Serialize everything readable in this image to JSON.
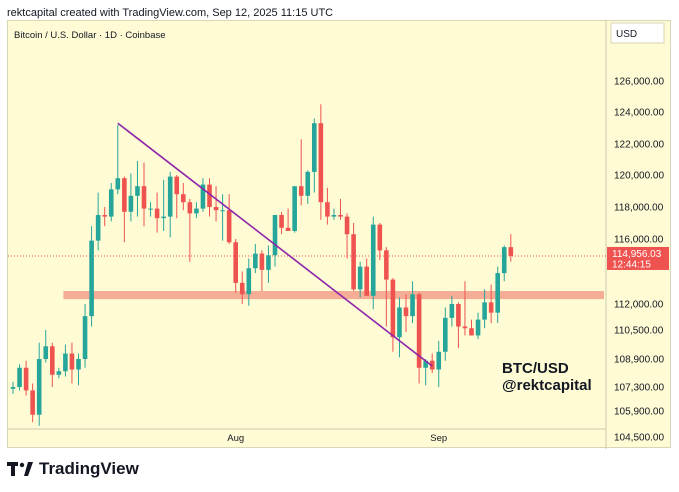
{
  "header": "rektcapital created with TradingView.com, Sep 12, 2025 11:15 UTC",
  "brand": "TradingView",
  "colors": {
    "background": "#fffbd5",
    "up": "#26a69a",
    "down": "#ef5350",
    "support_zone": "#f4a48f",
    "trendline": "#8e24aa"
  },
  "chart_data": {
    "type": "candlestick",
    "title": "Bitcoin / U.S. Dollar · 1D · Coinbase",
    "currency": "USD",
    "y_ticks": [
      "126,000.00",
      "124,000.00",
      "122,000.00",
      "120,000.00",
      "118,000.00",
      "116,000.00",
      "112,000.00",
      "110,500.00",
      "108,900.00",
      "107,300.00",
      "105,900.00",
      "104,500.00"
    ],
    "x_labels": [
      "Aug",
      "Sep"
    ],
    "last_price": {
      "value": "114,956.03",
      "countdown": "12:44:15"
    },
    "annotation": [
      "BTC/USD",
      "@rektcapital"
    ],
    "support_zone": [
      112300,
      112800
    ],
    "trendline": [
      {
        "date": "Jul 14",
        "price": 123300
      },
      {
        "date": "Aug 31",
        "price": 108500
      }
    ],
    "candles": [
      {
        "date": "Jun 28",
        "o": 107200,
        "h": 107600,
        "l": 106900,
        "c": 107300
      },
      {
        "date": "Jun 29",
        "o": 107300,
        "h": 108600,
        "l": 107100,
        "c": 108400
      },
      {
        "date": "Jun 30",
        "o": 108400,
        "h": 108800,
        "l": 106800,
        "c": 107100
      },
      {
        "date": "Jul 1",
        "o": 107100,
        "h": 107500,
        "l": 105300,
        "c": 105700
      },
      {
        "date": "Jul 2",
        "o": 105700,
        "h": 109800,
        "l": 105100,
        "c": 108900
      },
      {
        "date": "Jul 3",
        "o": 108900,
        "h": 110500,
        "l": 108700,
        "c": 109600
      },
      {
        "date": "Jul 4",
        "o": 109600,
        "h": 109800,
        "l": 107300,
        "c": 108000
      },
      {
        "date": "Jul 5",
        "o": 108000,
        "h": 108400,
        "l": 107800,
        "c": 108200
      },
      {
        "date": "Jul 6",
        "o": 108200,
        "h": 109700,
        "l": 107900,
        "c": 109200
      },
      {
        "date": "Jul 7",
        "o": 109200,
        "h": 109800,
        "l": 107500,
        "c": 108300
      },
      {
        "date": "Jul 8",
        "o": 108300,
        "h": 109200,
        "l": 107400,
        "c": 108900
      },
      {
        "date": "Jul 9",
        "o": 108900,
        "h": 112000,
        "l": 108400,
        "c": 111300
      },
      {
        "date": "Jul 10",
        "o": 111300,
        "h": 116800,
        "l": 110700,
        "c": 115900
      },
      {
        "date": "Jul 11",
        "o": 115900,
        "h": 118900,
        "l": 115300,
        "c": 117500
      },
      {
        "date": "Jul 12",
        "o": 117500,
        "h": 118000,
        "l": 116800,
        "c": 117400
      },
      {
        "date": "Jul 13",
        "o": 117400,
        "h": 119500,
        "l": 117100,
        "c": 119100
      },
      {
        "date": "Jul 14",
        "o": 119100,
        "h": 123200,
        "l": 118800,
        "c": 119800
      },
      {
        "date": "Jul 15",
        "o": 119800,
        "h": 119900,
        "l": 115800,
        "c": 117700
      },
      {
        "date": "Jul 16",
        "o": 117700,
        "h": 120100,
        "l": 117100,
        "c": 118700
      },
      {
        "date": "Jul 17",
        "o": 118700,
        "h": 120900,
        "l": 117400,
        "c": 119300
      },
      {
        "date": "Jul 18",
        "o": 119300,
        "h": 120800,
        "l": 116800,
        "c": 117900
      },
      {
        "date": "Jul 19",
        "o": 117900,
        "h": 118300,
        "l": 117400,
        "c": 117900
      },
      {
        "date": "Jul 20",
        "o": 117900,
        "h": 118900,
        "l": 116400,
        "c": 117300
      },
      {
        "date": "Jul 21",
        "o": 117300,
        "h": 119700,
        "l": 116500,
        "c": 117400
      },
      {
        "date": "Jul 22",
        "o": 117400,
        "h": 120200,
        "l": 116100,
        "c": 119900
      },
      {
        "date": "Jul 23",
        "o": 119900,
        "h": 120000,
        "l": 117300,
        "c": 118800
      },
      {
        "date": "Jul 24",
        "o": 118800,
        "h": 119500,
        "l": 117800,
        "c": 118300
      },
      {
        "date": "Jul 25",
        "o": 118300,
        "h": 118500,
        "l": 114600,
        "c": 117600
      },
      {
        "date": "Jul 26",
        "o": 117600,
        "h": 118300,
        "l": 117300,
        "c": 117900
      },
      {
        "date": "Jul 27",
        "o": 117900,
        "h": 119800,
        "l": 117700,
        "c": 119400
      },
      {
        "date": "Jul 28",
        "o": 119400,
        "h": 119800,
        "l": 117400,
        "c": 118000
      },
      {
        "date": "Jul 29",
        "o": 118000,
        "h": 119300,
        "l": 117100,
        "c": 117800
      },
      {
        "date": "Jul 30",
        "o": 117800,
        "h": 118800,
        "l": 115900,
        "c": 117800
      },
      {
        "date": "Jul 31",
        "o": 117800,
        "h": 118800,
        "l": 115700,
        "c": 115800
      },
      {
        "date": "Aug 1",
        "o": 115800,
        "h": 116000,
        "l": 112700,
        "c": 113300
      },
      {
        "date": "Aug 2",
        "o": 113300,
        "h": 114000,
        "l": 112000,
        "c": 112600
      },
      {
        "date": "Aug 3",
        "o": 112600,
        "h": 114800,
        "l": 111900,
        "c": 114200
      },
      {
        "date": "Aug 4",
        "o": 114200,
        "h": 115700,
        "l": 113900,
        "c": 115100
      },
      {
        "date": "Aug 5",
        "o": 115100,
        "h": 115300,
        "l": 112800,
        "c": 114100
      },
      {
        "date": "Aug 6",
        "o": 114100,
        "h": 115600,
        "l": 113300,
        "c": 115000
      },
      {
        "date": "Aug 7",
        "o": 115000,
        "h": 117500,
        "l": 114300,
        "c": 117500
      },
      {
        "date": "Aug 8",
        "o": 117500,
        "h": 117700,
        "l": 116300,
        "c": 116700
      },
      {
        "date": "Aug 9",
        "o": 116700,
        "h": 117900,
        "l": 116500,
        "c": 116500
      },
      {
        "date": "Aug 10",
        "o": 116500,
        "h": 119300,
        "l": 116400,
        "c": 119300
      },
      {
        "date": "Aug 11",
        "o": 119300,
        "h": 122300,
        "l": 118100,
        "c": 118700
      },
      {
        "date": "Aug 12",
        "o": 118700,
        "h": 120300,
        "l": 118200,
        "c": 120200
      },
      {
        "date": "Aug 13",
        "o": 120200,
        "h": 123600,
        "l": 118900,
        "c": 123300
      },
      {
        "date": "Aug 14",
        "o": 123300,
        "h": 124500,
        "l": 117200,
        "c": 118300
      },
      {
        "date": "Aug 15",
        "o": 118300,
        "h": 119200,
        "l": 116900,
        "c": 117400
      },
      {
        "date": "Aug 16",
        "o": 117400,
        "h": 117900,
        "l": 117200,
        "c": 117500
      },
      {
        "date": "Aug 17",
        "o": 117500,
        "h": 118500,
        "l": 117200,
        "c": 117400
      },
      {
        "date": "Aug 18",
        "o": 117400,
        "h": 117600,
        "l": 114800,
        "c": 116300
      },
      {
        "date": "Aug 19",
        "o": 116300,
        "h": 117000,
        "l": 112800,
        "c": 112900
      },
      {
        "date": "Aug 20",
        "o": 112900,
        "h": 114600,
        "l": 112400,
        "c": 114300
      },
      {
        "date": "Aug 21",
        "o": 114300,
        "h": 114800,
        "l": 112600,
        "c": 112500
      },
      {
        "date": "Aug 22",
        "o": 112500,
        "h": 117400,
        "l": 111700,
        "c": 116900
      },
      {
        "date": "Aug 23",
        "o": 116900,
        "h": 117000,
        "l": 114700,
        "c": 115300
      },
      {
        "date": "Aug 24",
        "o": 115300,
        "h": 115500,
        "l": 110700,
        "c": 113500
      },
      {
        "date": "Aug 25",
        "o": 113500,
        "h": 113600,
        "l": 109300,
        "c": 110100
      },
      {
        "date": "Aug 26",
        "o": 110100,
        "h": 112400,
        "l": 109000,
        "c": 111800
      },
      {
        "date": "Aug 27",
        "o": 111800,
        "h": 112600,
        "l": 110400,
        "c": 111300
      },
      {
        "date": "Aug 28",
        "o": 111300,
        "h": 113400,
        "l": 110900,
        "c": 112600
      },
      {
        "date": "Aug 29",
        "o": 112600,
        "h": 112700,
        "l": 107500,
        "c": 108400
      },
      {
        "date": "Aug 30",
        "o": 108400,
        "h": 108900,
        "l": 107400,
        "c": 108800
      },
      {
        "date": "Aug 31",
        "o": 108800,
        "h": 109200,
        "l": 108100,
        "c": 108300
      },
      {
        "date": "Sep 1",
        "o": 108300,
        "h": 109900,
        "l": 107300,
        "c": 109300
      },
      {
        "date": "Sep 2",
        "o": 109300,
        "h": 111800,
        "l": 108800,
        "c": 111200
      },
      {
        "date": "Sep 3",
        "o": 111200,
        "h": 112500,
        "l": 110700,
        "c": 112000
      },
      {
        "date": "Sep 4",
        "o": 112000,
        "h": 112100,
        "l": 109500,
        "c": 110700
      },
      {
        "date": "Sep 5",
        "o": 110700,
        "h": 113400,
        "l": 110200,
        "c": 110600
      },
      {
        "date": "Sep 6",
        "o": 110600,
        "h": 111100,
        "l": 110200,
        "c": 110200
      },
      {
        "date": "Sep 7",
        "o": 110200,
        "h": 111500,
        "l": 110000,
        "c": 111100
      },
      {
        "date": "Sep 8",
        "o": 111100,
        "h": 112900,
        "l": 110600,
        "c": 112100
      },
      {
        "date": "Sep 9",
        "o": 112100,
        "h": 113200,
        "l": 110900,
        "c": 111500
      },
      {
        "date": "Sep 10",
        "o": 111500,
        "h": 114300,
        "l": 110900,
        "c": 113900
      },
      {
        "date": "Sep 11",
        "o": 113900,
        "h": 115600,
        "l": 113400,
        "c": 115500
      },
      {
        "date": "Sep 12",
        "o": 115500,
        "h": 116300,
        "l": 114600,
        "c": 114956
      }
    ]
  }
}
